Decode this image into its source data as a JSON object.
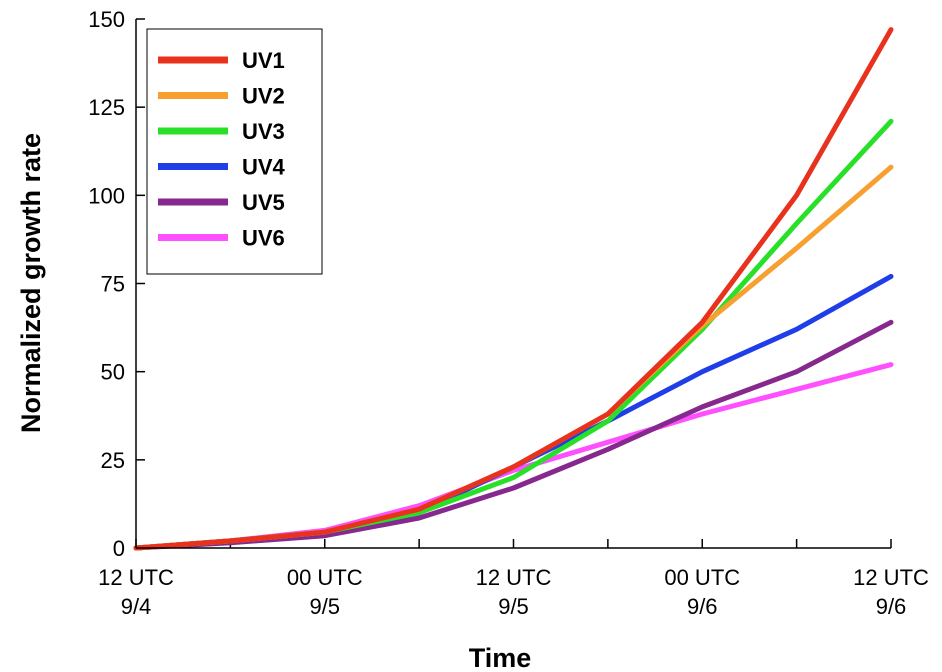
{
  "chart_data": {
    "type": "line",
    "xlabel": "Time",
    "ylabel": "Normalized growth rate",
    "ylim": [
      0,
      150
    ],
    "y_ticks": [
      0,
      25,
      50,
      75,
      100,
      125,
      150
    ],
    "x_tick_labels": [
      {
        "line1": "12 UTC",
        "line2": "9/4"
      },
      {
        "line1": "00 UTC",
        "line2": "9/5"
      },
      {
        "line1": "12 UTC",
        "line2": "9/5"
      },
      {
        "line1": "00 UTC",
        "line2": "9/6"
      },
      {
        "line1": "12 UTC",
        "line2": "9/6"
      }
    ],
    "x_times_hours": [
      0,
      6,
      12,
      18,
      24,
      30,
      36,
      42,
      48
    ],
    "x_range_hours": [
      0,
      48
    ],
    "grid": false,
    "legend_position": "top-left",
    "series": [
      {
        "name": "UV1",
        "color": "#e8321e",
        "values": [
          0,
          2,
          4.5,
          11,
          23,
          38,
          64,
          100,
          147
        ]
      },
      {
        "name": "UV2",
        "color": "#f7a030",
        "values": [
          0,
          2,
          4.5,
          11,
          23,
          38,
          63,
          85,
          108
        ]
      },
      {
        "name": "UV3",
        "color": "#28e028",
        "values": [
          0,
          2,
          4.5,
          10,
          20,
          36,
          62,
          92,
          121
        ]
      },
      {
        "name": "UV4",
        "color": "#1f3ee8",
        "values": [
          0,
          2,
          4.5,
          10,
          23,
          36,
          50,
          62,
          77
        ]
      },
      {
        "name": "UV5",
        "color": "#86288e",
        "values": [
          0,
          1.5,
          3.5,
          8.5,
          17,
          28,
          40,
          50,
          64
        ]
      },
      {
        "name": "UV6",
        "color": "#ff50ff",
        "values": [
          0,
          2,
          5,
          12,
          22,
          30,
          38,
          45,
          52
        ]
      }
    ]
  }
}
